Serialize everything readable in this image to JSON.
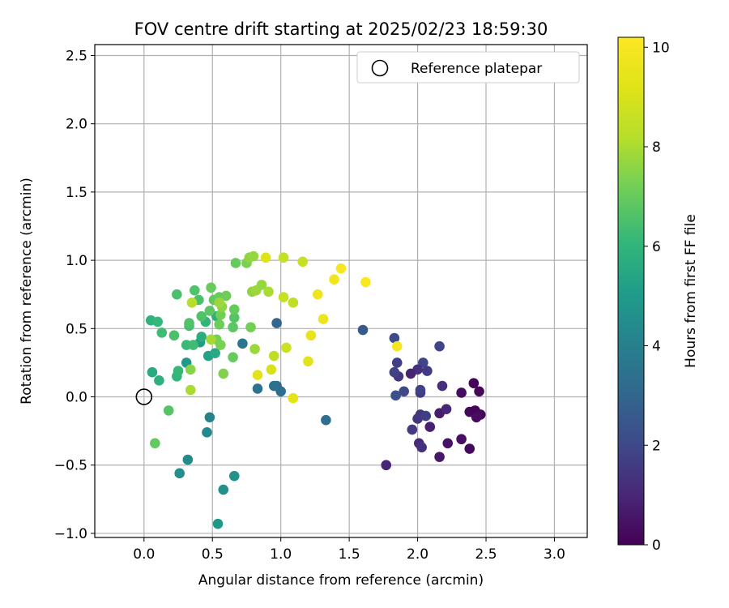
{
  "chart_data": {
    "type": "scatter",
    "title": "FOV centre drift starting at 2025/02/23 18:59:30",
    "xlabel": "Angular distance from reference (arcmin)",
    "ylabel": "Rotation from reference (arcmin)",
    "xlim": [
      -0.36,
      3.24
    ],
    "ylim": [
      -1.03,
      2.58
    ],
    "xticks": [
      0.0,
      0.5,
      1.0,
      1.5,
      2.0,
      2.5,
      3.0
    ],
    "xtick_labels": [
      "0.0",
      "0.5",
      "1.0",
      "1.5",
      "2.0",
      "2.5",
      "3.0"
    ],
    "yticks": [
      -1.0,
      -0.5,
      0.0,
      0.5,
      1.0,
      1.5,
      2.0,
      2.5
    ],
    "ytick_labels": [
      "−1.0",
      "−0.5",
      "0.0",
      "0.5",
      "1.0",
      "1.5",
      "2.0",
      "2.5"
    ],
    "grid": true,
    "legend": {
      "placement": "top-right",
      "entries": [
        "Reference platepar"
      ]
    },
    "reference_point": {
      "x": 0.0,
      "y": 0.0
    },
    "colorbar": {
      "label": "Hours from first FF file",
      "colormap": "viridis",
      "range": [
        0,
        10.2
      ],
      "ticks": [
        0,
        2,
        4,
        6,
        8,
        10
      ],
      "tick_labels": [
        "0",
        "2",
        "4",
        "6",
        "8",
        "10"
      ]
    },
    "series": [
      {
        "points": [
          {
            "x": 2.41,
            "y": 0.1,
            "h": 0.1
          },
          {
            "x": 2.45,
            "y": 0.04,
            "h": 0.2
          },
          {
            "x": 2.32,
            "y": 0.03,
            "h": 0.3
          },
          {
            "x": 2.38,
            "y": -0.11,
            "h": 0.2
          },
          {
            "x": 2.42,
            "y": -0.1,
            "h": 0.1
          },
          {
            "x": 2.46,
            "y": -0.13,
            "h": 0.2
          },
          {
            "x": 2.43,
            "y": -0.15,
            "h": 0.3
          },
          {
            "x": 2.32,
            "y": -0.31,
            "h": 0.4
          },
          {
            "x": 2.38,
            "y": -0.38,
            "h": 0.2
          },
          {
            "x": 2.22,
            "y": -0.34,
            "h": 0.5
          },
          {
            "x": 2.16,
            "y": -0.44,
            "h": 0.6
          },
          {
            "x": 2.16,
            "y": -0.12,
            "h": 0.7
          },
          {
            "x": 2.09,
            "y": -0.22,
            "h": 0.8
          },
          {
            "x": 2.21,
            "y": -0.09,
            "h": 1.0
          },
          {
            "x": 2.18,
            "y": 0.08,
            "h": 1.2
          },
          {
            "x": 2.01,
            "y": -0.34,
            "h": 1.1
          },
          {
            "x": 2.03,
            "y": -0.37,
            "h": 1.3
          },
          {
            "x": 1.96,
            "y": -0.24,
            "h": 1.6
          },
          {
            "x": 2.0,
            "y": -0.16,
            "h": 1.4
          },
          {
            "x": 2.02,
            "y": -0.13,
            "h": 1.5
          },
          {
            "x": 2.06,
            "y": -0.14,
            "h": 1.7
          },
          {
            "x": 2.02,
            "y": 0.03,
            "h": 1.5
          },
          {
            "x": 2.02,
            "y": 0.05,
            "h": 1.8
          },
          {
            "x": 2.07,
            "y": 0.19,
            "h": 1.6
          },
          {
            "x": 2.04,
            "y": 0.25,
            "h": 1.9
          },
          {
            "x": 2.0,
            "y": 0.2,
            "h": 1.3
          },
          {
            "x": 1.95,
            "y": 0.17,
            "h": 0.9
          },
          {
            "x": 1.86,
            "y": 0.15,
            "h": 1.5
          },
          {
            "x": 1.83,
            "y": 0.18,
            "h": 1.8
          },
          {
            "x": 1.85,
            "y": 0.25,
            "h": 1.7
          },
          {
            "x": 1.9,
            "y": 0.04,
            "h": 2.0
          },
          {
            "x": 1.84,
            "y": 0.01,
            "h": 2.2
          },
          {
            "x": 1.83,
            "y": 0.43,
            "h": 2.1
          },
          {
            "x": 2.16,
            "y": 0.37,
            "h": 1.9
          },
          {
            "x": 1.77,
            "y": -0.5,
            "h": 1.0
          },
          {
            "x": 1.6,
            "y": 0.49,
            "h": 2.6
          },
          {
            "x": 1.85,
            "y": 0.37,
            "h": 9.9
          },
          {
            "x": 0.97,
            "y": 0.54,
            "h": 3.0
          },
          {
            "x": 0.97,
            "y": 0.08,
            "h": 3.2
          },
          {
            "x": 0.95,
            "y": 0.08,
            "h": 3.4
          },
          {
            "x": 1.0,
            "y": 0.04,
            "h": 3.3
          },
          {
            "x": 0.83,
            "y": 0.06,
            "h": 3.5
          },
          {
            "x": 1.33,
            "y": -0.17,
            "h": 3.3
          },
          {
            "x": 0.72,
            "y": 0.39,
            "h": 3.6
          },
          {
            "x": 0.48,
            "y": -0.15,
            "h": 4.1
          },
          {
            "x": 0.46,
            "y": -0.26,
            "h": 4.3
          },
          {
            "x": 0.32,
            "y": -0.46,
            "h": 4.4
          },
          {
            "x": 0.26,
            "y": -0.56,
            "h": 4.5
          },
          {
            "x": 0.58,
            "y": -0.68,
            "h": 4.6
          },
          {
            "x": 0.66,
            "y": -0.58,
            "h": 4.7
          },
          {
            "x": 0.54,
            "y": -0.93,
            "h": 4.8
          },
          {
            "x": 0.31,
            "y": 0.25,
            "h": 4.9
          },
          {
            "x": 0.41,
            "y": 0.4,
            "h": 5.0
          },
          {
            "x": 0.47,
            "y": 0.3,
            "h": 5.3
          },
          {
            "x": 0.52,
            "y": 0.32,
            "h": 5.5
          },
          {
            "x": 0.42,
            "y": 0.44,
            "h": 5.7
          },
          {
            "x": 0.53,
            "y": 0.59,
            "h": 5.8
          },
          {
            "x": 0.45,
            "y": 0.55,
            "h": 6.0
          },
          {
            "x": 0.06,
            "y": 0.18,
            "h": 5.6
          },
          {
            "x": 0.11,
            "y": 0.12,
            "h": 5.8
          },
          {
            "x": 0.24,
            "y": 0.15,
            "h": 6.0
          },
          {
            "x": 0.25,
            "y": 0.19,
            "h": 6.1
          },
          {
            "x": 0.31,
            "y": 0.38,
            "h": 6.2
          },
          {
            "x": 0.36,
            "y": 0.38,
            "h": 6.3
          },
          {
            "x": 0.05,
            "y": 0.56,
            "h": 5.9
          },
          {
            "x": 0.1,
            "y": 0.55,
            "h": 6.1
          },
          {
            "x": 0.13,
            "y": 0.47,
            "h": 6.3
          },
          {
            "x": 0.22,
            "y": 0.45,
            "h": 6.5
          },
          {
            "x": 0.33,
            "y": 0.52,
            "h": 6.4
          },
          {
            "x": 0.33,
            "y": 0.54,
            "h": 6.6
          },
          {
            "x": 0.18,
            "y": -0.1,
            "h": 6.7
          },
          {
            "x": 0.08,
            "y": -0.34,
            "h": 6.9
          },
          {
            "x": 0.24,
            "y": 0.75,
            "h": 6.5
          },
          {
            "x": 0.37,
            "y": 0.78,
            "h": 6.6
          },
          {
            "x": 0.4,
            "y": 0.71,
            "h": 6.5
          },
          {
            "x": 0.42,
            "y": 0.59,
            "h": 6.6
          },
          {
            "x": 0.48,
            "y": 0.63,
            "h": 6.8
          },
          {
            "x": 0.51,
            "y": 0.71,
            "h": 6.9
          },
          {
            "x": 0.55,
            "y": 0.73,
            "h": 7.0
          },
          {
            "x": 0.6,
            "y": 0.74,
            "h": 7.1
          },
          {
            "x": 0.49,
            "y": 0.8,
            "h": 7.0
          },
          {
            "x": 0.66,
            "y": 0.58,
            "h": 6.7
          },
          {
            "x": 0.65,
            "y": 0.51,
            "h": 6.8
          },
          {
            "x": 0.66,
            "y": 0.64,
            "h": 7.0
          },
          {
            "x": 0.56,
            "y": 0.6,
            "h": 7.2
          },
          {
            "x": 0.55,
            "y": 0.53,
            "h": 7.1
          },
          {
            "x": 0.53,
            "y": 0.42,
            "h": 7.2
          },
          {
            "x": 0.56,
            "y": 0.38,
            "h": 7.3
          },
          {
            "x": 0.65,
            "y": 0.29,
            "h": 7.0
          },
          {
            "x": 0.58,
            "y": 0.17,
            "h": 7.4
          },
          {
            "x": 0.34,
            "y": 0.2,
            "h": 7.5
          },
          {
            "x": 0.34,
            "y": 0.05,
            "h": 8.0
          },
          {
            "x": 0.35,
            "y": 0.69,
            "h": 8.2
          },
          {
            "x": 0.49,
            "y": 0.42,
            "h": 7.9
          },
          {
            "x": 0.57,
            "y": 0.66,
            "h": 7.6
          },
          {
            "x": 0.55,
            "y": 0.69,
            "h": 7.8
          },
          {
            "x": 0.67,
            "y": 0.98,
            "h": 7.0
          },
          {
            "x": 0.75,
            "y": 0.98,
            "h": 7.3
          },
          {
            "x": 0.77,
            "y": 1.02,
            "h": 7.6
          },
          {
            "x": 0.8,
            "y": 1.03,
            "h": 7.7
          },
          {
            "x": 0.78,
            "y": 0.51,
            "h": 7.2
          },
          {
            "x": 0.81,
            "y": 0.35,
            "h": 7.8
          },
          {
            "x": 0.79,
            "y": 0.77,
            "h": 7.6
          },
          {
            "x": 0.82,
            "y": 0.78,
            "h": 7.8
          },
          {
            "x": 0.86,
            "y": 0.82,
            "h": 7.7
          },
          {
            "x": 0.91,
            "y": 0.77,
            "h": 8.0
          },
          {
            "x": 0.95,
            "y": 0.3,
            "h": 8.4
          },
          {
            "x": 1.02,
            "y": 1.02,
            "h": 8.5
          },
          {
            "x": 1.04,
            "y": 0.36,
            "h": 8.7
          },
          {
            "x": 1.02,
            "y": 0.73,
            "h": 8.6
          },
          {
            "x": 1.09,
            "y": 0.69,
            "h": 8.4
          },
          {
            "x": 1.16,
            "y": 0.99,
            "h": 8.6
          },
          {
            "x": 0.89,
            "y": 1.02,
            "h": 9.2
          },
          {
            "x": 0.93,
            "y": 0.2,
            "h": 9.0
          },
          {
            "x": 0.83,
            "y": 0.16,
            "h": 9.3
          },
          {
            "x": 1.09,
            "y": -0.01,
            "h": 9.4
          },
          {
            "x": 1.2,
            "y": 0.26,
            "h": 9.3
          },
          {
            "x": 1.22,
            "y": 0.45,
            "h": 9.5
          },
          {
            "x": 1.27,
            "y": 0.75,
            "h": 9.7
          },
          {
            "x": 1.31,
            "y": 0.57,
            "h": 9.6
          },
          {
            "x": 1.39,
            "y": 0.86,
            "h": 9.8
          },
          {
            "x": 1.44,
            "y": 0.94,
            "h": 10.0
          },
          {
            "x": 1.62,
            "y": 0.84,
            "h": 10.1
          }
        ]
      }
    ]
  }
}
